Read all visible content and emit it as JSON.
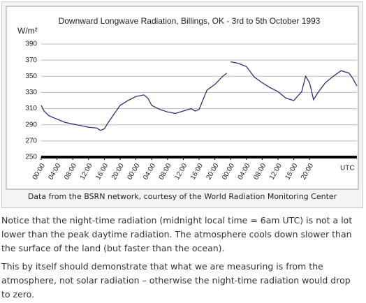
{
  "chart_data": {
    "type": "line",
    "title": "Downward Longwave Radiation, Billings, OK - 3rd to 5th October 1993",
    "y_label": "W/m²",
    "x_label": "UTC",
    "x": [
      0,
      0.7,
      2,
      4,
      6,
      8,
      10,
      12,
      14,
      15,
      16,
      17,
      18,
      20,
      22,
      24,
      26,
      27,
      28,
      30,
      32,
      34,
      36,
      38,
      39,
      40,
      42,
      44,
      46,
      47,
      47.5,
      48,
      50,
      52,
      54,
      56,
      58,
      60,
      62,
      64,
      66,
      67,
      68,
      69,
      70,
      72,
      74,
      76,
      78,
      79,
      80
    ],
    "series": [
      {
        "name": "Downward longwave radiation",
        "color": "#2e2e78",
        "values": [
          314,
          307,
          301,
          297,
          293,
          291,
          289,
          287,
          286,
          283,
          285,
          293,
          300,
          314,
          320,
          325,
          327,
          323,
          314,
          309,
          306,
          304,
          307,
          310,
          307,
          309,
          333,
          340,
          350,
          354,
          null,
          368,
          366,
          362,
          349,
          342,
          336,
          331,
          323,
          320,
          331,
          350,
          342,
          321,
          329,
          342,
          350,
          357,
          354,
          347,
          338
        ]
      }
    ],
    "xlim": [
      0,
      80
    ],
    "xticks": [
      {
        "value": 0,
        "label": "00:00"
      },
      {
        "value": 4,
        "label": "04:00"
      },
      {
        "value": 8,
        "label": "08:00"
      },
      {
        "value": 12,
        "label": "12:00"
      },
      {
        "value": 16,
        "label": "16:00"
      },
      {
        "value": 20,
        "label": "20:00"
      },
      {
        "value": 24,
        "label": "00:00"
      },
      {
        "value": 28,
        "label": "04:00"
      },
      {
        "value": 32,
        "label": "08:00"
      },
      {
        "value": 36,
        "label": "12:00"
      },
      {
        "value": 40,
        "label": "16:00"
      },
      {
        "value": 44,
        "label": "20:00"
      },
      {
        "value": 48,
        "label": "00:00"
      },
      {
        "value": 52,
        "label": "04:00"
      },
      {
        "value": 56,
        "label": "08:00"
      },
      {
        "value": 60,
        "label": "12:00"
      },
      {
        "value": 64,
        "label": "16:00"
      },
      {
        "value": 68,
        "label": "20:00"
      }
    ],
    "ylim": [
      250,
      390
    ],
    "yticks": [
      250,
      270,
      290,
      310,
      330,
      350,
      370,
      390
    ],
    "grid": true
  },
  "caption": "Data from the BSRN network, courtesy of the World Radiation Monitoring Center",
  "paragraphs": [
    "Notice that the night-time radiation (midnight local time = 6am UTC) is not a lot lower than the peak daytime radiation. The atmosphere cools down slower than the surface of the land (but faster than the ocean).",
    "This by itself should demonstrate that what we are measuring is from the atmosphere, not solar radiation – otherwise the night-time radiation would drop to zero."
  ]
}
